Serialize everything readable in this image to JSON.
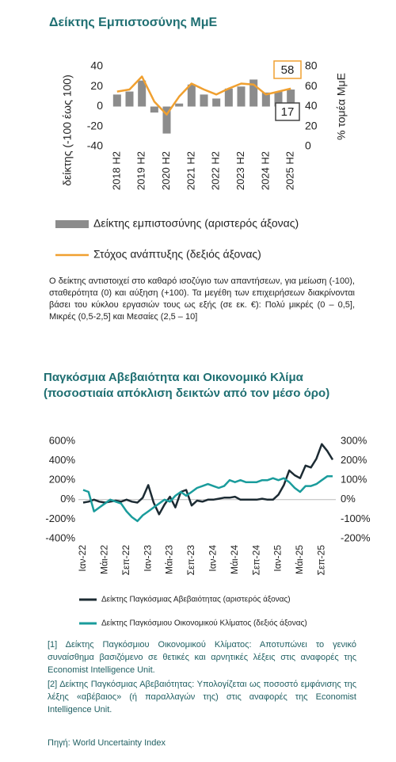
{
  "chart_data": [
    {
      "type": "combo",
      "title": "Δείκτης Εμπιστοσύνης ΜμΕ",
      "ylabel": "δείκτης (-100 έως 100)",
      "y2label": "% τομέα ΜμΕ",
      "categories": [
        "2018 H2",
        null,
        "2019 H2",
        null,
        "2020 H2",
        null,
        "2021 H2",
        null,
        "2022 H2",
        null,
        "2023 H2",
        null,
        "2024 H2",
        null,
        "2025 H2"
      ],
      "series": [
        {
          "name": "Δείκτης εμπιστοσύνης (αριστερός άξονας)",
          "type": "bar",
          "color": "#8c8c8c",
          "values": [
            12,
            15,
            26,
            -6,
            -27,
            3,
            22,
            12,
            8,
            18,
            20,
            27,
            14,
            15,
            17
          ]
        },
        {
          "name": "Στόχος ανάπτυξης (δεξιός άξονας)",
          "type": "line",
          "axis": "y2",
          "color": "#f0a030",
          "values": [
            55,
            57,
            70,
            45,
            32,
            50,
            63,
            57,
            52,
            58,
            63,
            62,
            52,
            55,
            58
          ]
        }
      ],
      "ylim": [
        -40,
        40
      ],
      "yticks": [
        -40,
        -20,
        0,
        20,
        40
      ],
      "y2lim": [
        0,
        80
      ],
      "y2ticks": [
        0,
        20,
        40,
        60,
        80
      ],
      "grid": false,
      "note": "Ο δείκτης αντιστοιχεί στο καθαρό ισοζύγιο των απαντήσεων, για μείωση (-100), σταθερότητα (0) και αύξηση (+100). Τα μεγέθη των επιχειρήσεων διακρίνονται βάσει του κύκλου εργασιών τους ως εξής (σε εκ. €): Πολύ μικρές (0 – 0,5], Μικρές (0,5-2,5] και Μεσαίες (2,5 – 10]"
    },
    {
      "type": "line",
      "title": "Παγκόσμια Αβεβαιότητα και Οικονομικό Κλίμα",
      "subtitle": "(ποσοστιαία απόκλιση δεικτών από τον μέσο όρο)",
      "categories": [
        "Ιαν-22",
        null,
        null,
        null,
        "Μάι-22",
        null,
        null,
        null,
        "Σεπ-22",
        null,
        null,
        null,
        "Ιαν-23",
        null,
        null,
        null,
        "Μάι-23",
        null,
        null,
        null,
        "Σεπ-23",
        null,
        null,
        null,
        "Ιαν-24",
        null,
        null,
        null,
        "Μάι-24",
        null,
        null,
        null,
        "Σεπ-24",
        null,
        null,
        null,
        "Ιαν-25",
        null,
        null,
        null,
        "Μάι-25",
        null,
        null,
        null,
        "Σεπ-25",
        null,
        null
      ],
      "series": [
        {
          "name": "Δείκτης Παγκόσμιας Αβεβαιότητας (αριστερός άξονας)",
          "color": "#1c2b33",
          "values": [
            -30,
            -20,
            0,
            -20,
            -30,
            -20,
            -10,
            -20,
            0,
            -20,
            -30,
            20,
            150,
            -30,
            -150,
            -50,
            30,
            -80,
            80,
            100,
            -60,
            -10,
            -20,
            0,
            0,
            10,
            20,
            20,
            30,
            0,
            0,
            0,
            0,
            10,
            0,
            0,
            50,
            150,
            300,
            250,
            220,
            350,
            330,
            420,
            570,
            500,
            410
          ]
        },
        {
          "name": "Δείκτης Παγκόσμιου Οικονομικού Κλίματος (δεξιός άξονας)",
          "color": "#1a9c9c",
          "axis": "y2",
          "values": [
            50,
            40,
            -60,
            -40,
            -20,
            0,
            -10,
            -20,
            -60,
            -90,
            -110,
            -80,
            -60,
            -40,
            -20,
            0,
            -10,
            20,
            40,
            20,
            40,
            60,
            70,
            80,
            70,
            60,
            70,
            100,
            90,
            100,
            90,
            90,
            90,
            100,
            100,
            110,
            100,
            110,
            90,
            60,
            40,
            70,
            70,
            80,
            100,
            120,
            120
          ]
        }
      ],
      "ylim": [
        -400,
        600
      ],
      "yticks": [
        {
          "value": -400,
          "label": "-400%"
        },
        {
          "value": -200,
          "label": "-200%"
        },
        {
          "value": 0,
          "label": "0%"
        },
        {
          "value": 200,
          "label": "200%"
        },
        {
          "value": 400,
          "label": "400%"
        },
        {
          "value": 600,
          "label": "600%"
        }
      ],
      "y2lim": [
        -200,
        300
      ],
      "y2ticks": [
        {
          "value": -200,
          "label": "-200%"
        },
        {
          "value": -100,
          "label": "-100%"
        },
        {
          "value": 0,
          "label": "0%"
        },
        {
          "value": 100,
          "label": "100%"
        },
        {
          "value": 200,
          "label": "200%"
        },
        {
          "value": 300,
          "label": "300%"
        }
      ],
      "grid": false,
      "footnotes": [
        "[1] Δείκτης Παγκόσμιου Οικονομικού Κλίματος: Αποτυπώνει το γενικό συναίσθημα βασιζόμενο σε θετικές και αρνητικές λέξεις στις αναφορές της Economist Intelligence Unit.",
        "[2] Δείκτης Παγκόσμιας Αβεβαιότητας: Υπολογίζεται ως ποσοστό εμφάνισης της λέξης «αβέβαιος» (ή παραλλαγών της) στις αναφορές της Economist Intelligence Unit."
      ],
      "source": "Πηγή: World Uncertainty Index"
    }
  ]
}
